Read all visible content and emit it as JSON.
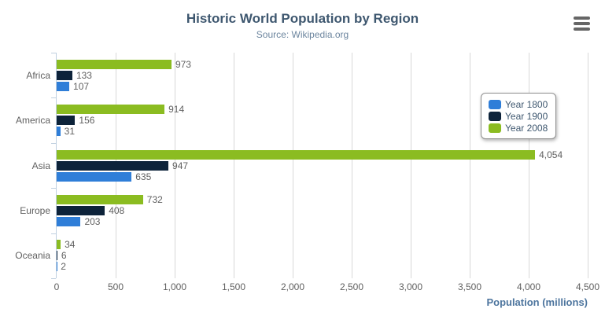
{
  "chart_data": {
    "type": "bar",
    "title": "Historic World Population by Region",
    "subtitle": "Source: Wikipedia.org",
    "xlabel": "Population (millions)",
    "categories": [
      "Africa",
      "America",
      "Asia",
      "Europe",
      "Oceania"
    ],
    "series": [
      {
        "name": "Year 1800",
        "color": "#2F7ED8",
        "values": [
          107,
          31,
          635,
          203,
          2
        ]
      },
      {
        "name": "Year 1900",
        "color": "#0D233A",
        "values": [
          133,
          156,
          947,
          408,
          6
        ]
      },
      {
        "name": "Year 2008",
        "color": "#8BBC21",
        "values": [
          973,
          914,
          4054,
          732,
          34
        ]
      }
    ],
    "series_display_order_top_to_bottom": [
      "Year 2008",
      "Year 1900",
      "Year 1800"
    ],
    "x_ticks": [
      0,
      500,
      1000,
      1500,
      2000,
      2500,
      3000,
      3500,
      4000,
      4500
    ],
    "xlim": [
      0,
      4500
    ],
    "grid": "vertical-only",
    "legend_position": "right-inside",
    "data_labels": "outside-end, thousands separated"
  },
  "icons": {
    "context_menu": "hamburger-icon"
  }
}
